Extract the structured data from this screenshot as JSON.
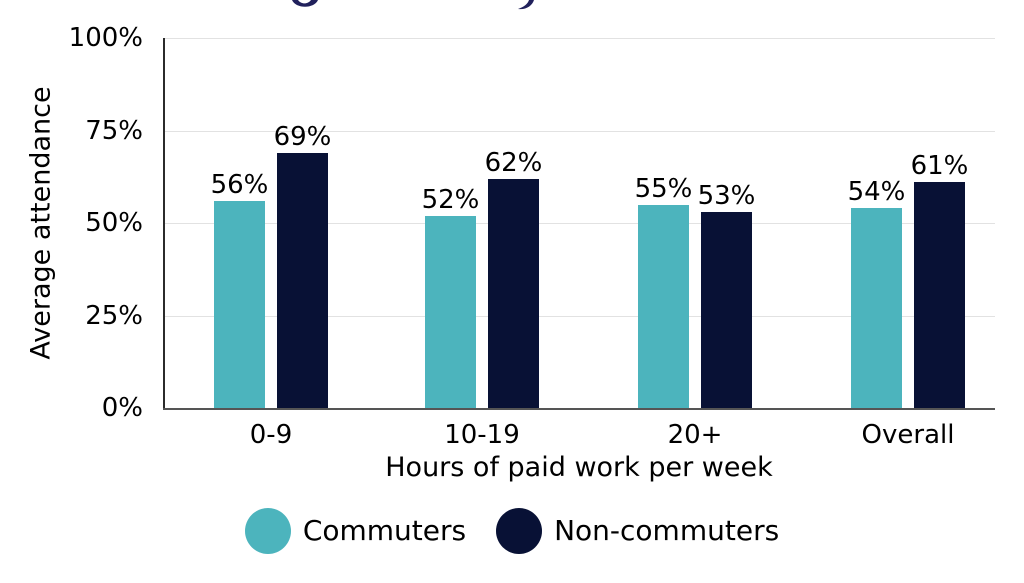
{
  "chart_data": {
    "type": "bar",
    "title": "",
    "categories": [
      "0-9",
      "10-19",
      "20+",
      "Overall"
    ],
    "series": [
      {
        "name": "Commuters",
        "color": "#4cb4bd",
        "values": [
          56,
          52,
          55,
          54
        ],
        "labels": [
          "56%",
          "52%",
          "55%",
          "54%"
        ]
      },
      {
        "name": "Non-commuters",
        "color": "#081135",
        "values": [
          69,
          62,
          53,
          61
        ],
        "labels": [
          "69%",
          "62%",
          "53%",
          "61%"
        ]
      }
    ],
    "xlabel": "Hours of paid work per week",
    "ylabel": "Average attendance",
    "ylim": [
      0,
      100
    ],
    "y_ticks": [
      {
        "value": 0,
        "label": "0%"
      },
      {
        "value": 25,
        "label": "25%"
      },
      {
        "value": 50,
        "label": "50%"
      },
      {
        "value": 75,
        "label": "75%"
      },
      {
        "value": 100,
        "label": "100%"
      }
    ],
    "grid": "horizontal",
    "legend_position": "bottom"
  },
  "colors": {
    "commuters": "#4cb4bd",
    "non_commuters": "#081135",
    "gridline": "#e2e2e2",
    "y_axis": "#2b2b2b",
    "x_axis": "#555555",
    "title_remnant": "#21215c"
  }
}
